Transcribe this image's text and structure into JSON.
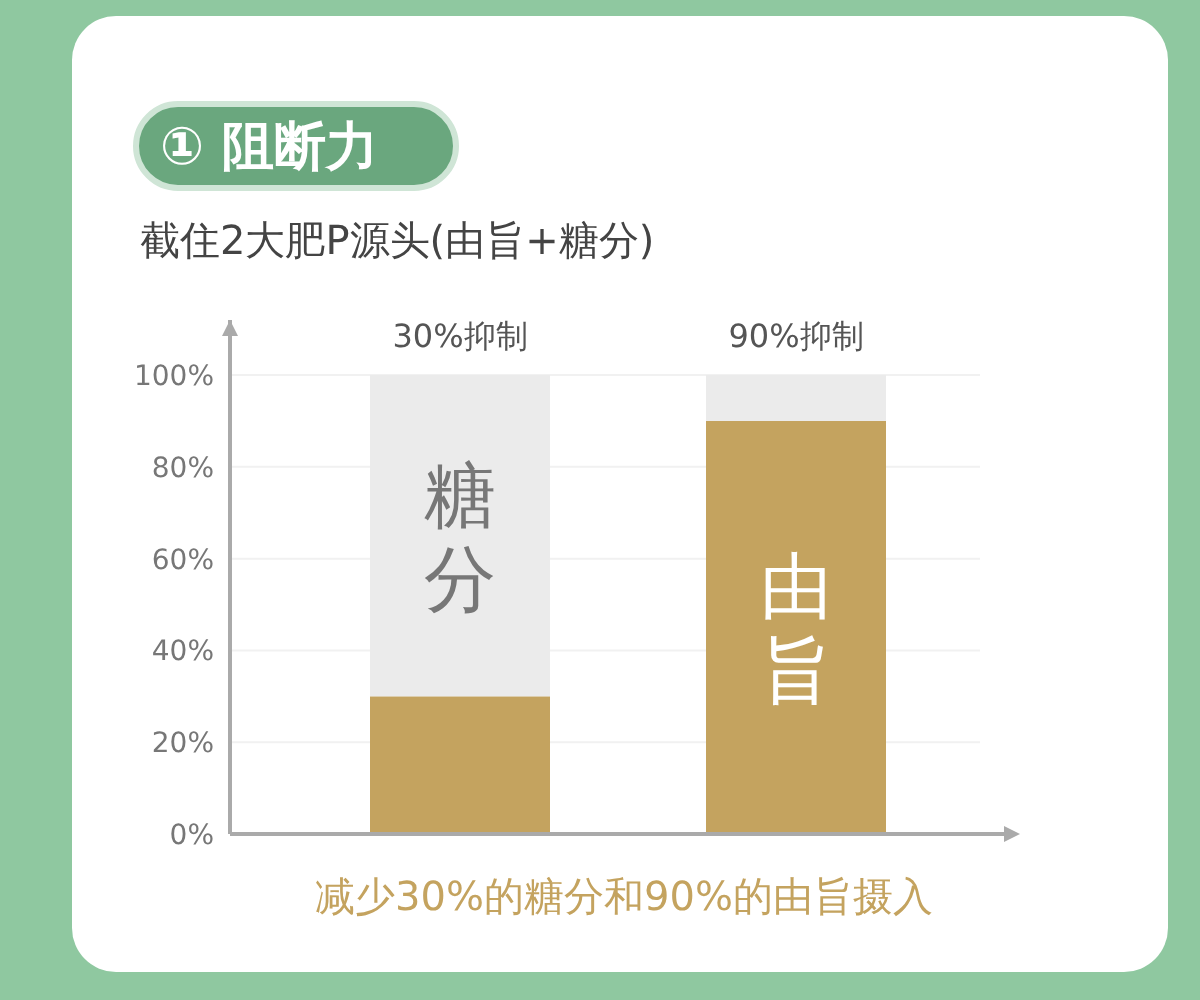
{
  "chart_data": {
    "type": "bar",
    "title": "① 阻断力",
    "subtitle": "截住2大肥P源头(由旨+糖分)",
    "categories": [
      "糖分",
      "由旨"
    ],
    "stacked": true,
    "series": [
      {
        "color": "#c4a35f",
        "values": [
          30,
          90
        ]
      },
      {
        "color": "#ebebeb",
        "values": [
          70,
          10
        ]
      }
    ],
    "ylim": [
      0,
      112
    ],
    "yticks": [
      {
        "value": 0,
        "label": "0%"
      },
      {
        "value": 20,
        "label": "20%"
      },
      {
        "value": 40,
        "label": "40%"
      },
      {
        "value": 60,
        "label": "60%"
      },
      {
        "value": 80,
        "label": "80%"
      },
      {
        "value": 100,
        "label": "100%"
      }
    ],
    "grid": "y",
    "annotations": [
      {
        "text": "30%抑制",
        "x": "糖分",
        "y": 100
      },
      {
        "text": "90%抑制",
        "x": "由旨",
        "y": 100
      },
      "减少30%的糖分和90%的由旨摄入"
    ]
  }
}
